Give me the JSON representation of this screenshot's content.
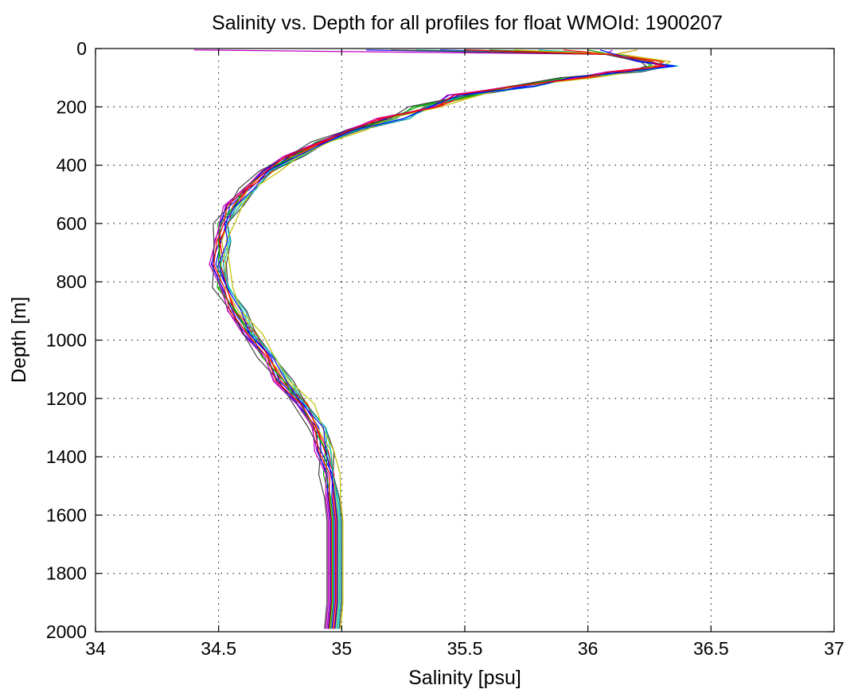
{
  "chart_data": {
    "type": "line",
    "title": "Salinity vs. Depth for all profiles for float WMOId: 1900207",
    "xlabel": "Salinity [psu]",
    "ylabel": "Depth [m]",
    "xlim": [
      34,
      37
    ],
    "ylim": [
      0,
      2000
    ],
    "y_reversed": true,
    "grid": true,
    "xticks": [
      "34",
      "34.5",
      "35",
      "35.5",
      "36",
      "36.5",
      "37"
    ],
    "yticks": [
      "0",
      "200",
      "400",
      "600",
      "800",
      "1000",
      "1200",
      "1400",
      "1600",
      "1800",
      "2000"
    ],
    "base_profile": [
      [
        35.7,
        5
      ],
      [
        36.1,
        20
      ],
      [
        36.25,
        45
      ],
      [
        36.3,
        60
      ],
      [
        36.15,
        80
      ],
      [
        35.95,
        100
      ],
      [
        35.72,
        130
      ],
      [
        35.5,
        160
      ],
      [
        35.35,
        200
      ],
      [
        35.2,
        240
      ],
      [
        35.05,
        280
      ],
      [
        34.92,
        320
      ],
      [
        34.8,
        370
      ],
      [
        34.7,
        420
      ],
      [
        34.62,
        480
      ],
      [
        34.56,
        540
      ],
      [
        34.52,
        600
      ],
      [
        34.51,
        660
      ],
      [
        34.5,
        740
      ],
      [
        34.52,
        820
      ],
      [
        34.57,
        900
      ],
      [
        34.63,
        980
      ],
      [
        34.7,
        1060
      ],
      [
        34.76,
        1140
      ],
      [
        34.84,
        1220
      ],
      [
        34.9,
        1300
      ],
      [
        34.93,
        1380
      ],
      [
        34.95,
        1460
      ],
      [
        34.96,
        1540
      ],
      [
        34.97,
        1620
      ],
      [
        34.97,
        1700
      ],
      [
        34.97,
        1800
      ],
      [
        34.97,
        1900
      ],
      [
        34.96,
        1990
      ]
    ],
    "series": [
      {
        "color": "#0000ff",
        "surface": 35.1,
        "offset": 0.0
      },
      {
        "color": "#ff0000",
        "surface": 36.2,
        "offset": 0.01
      },
      {
        "color": "#00aa00",
        "surface": 35.6,
        "offset": -0.01
      },
      {
        "color": "#00bfbf",
        "surface": 35.8,
        "offset": 0.02
      },
      {
        "color": "#bf00bf",
        "surface": 34.4,
        "offset": -0.02
      },
      {
        "color": "#bfbf00",
        "surface": 36.2,
        "offset": 0.015
      },
      {
        "color": "#404040",
        "surface": 35.5,
        "offset": 0.03
      },
      {
        "color": "#0000ff",
        "surface": 35.4,
        "offset": -0.015
      },
      {
        "color": "#ff0000",
        "surface": 35.9,
        "offset": 0.005
      },
      {
        "color": "#00aa00",
        "surface": 36.0,
        "offset": -0.005
      },
      {
        "color": "#00bfbf",
        "surface": 35.3,
        "offset": 0.025
      },
      {
        "color": "#bf00bf",
        "surface": 36.1,
        "offset": -0.025
      },
      {
        "color": "#bfbf00",
        "surface": 35.7,
        "offset": 0.035
      },
      {
        "color": "#404040",
        "surface": 35.2,
        "offset": -0.03
      },
      {
        "color": "#0000ff",
        "surface": 36.05,
        "offset": 0.012
      },
      {
        "color": "#ff0000",
        "surface": 35.5,
        "offset": -0.012
      }
    ]
  }
}
